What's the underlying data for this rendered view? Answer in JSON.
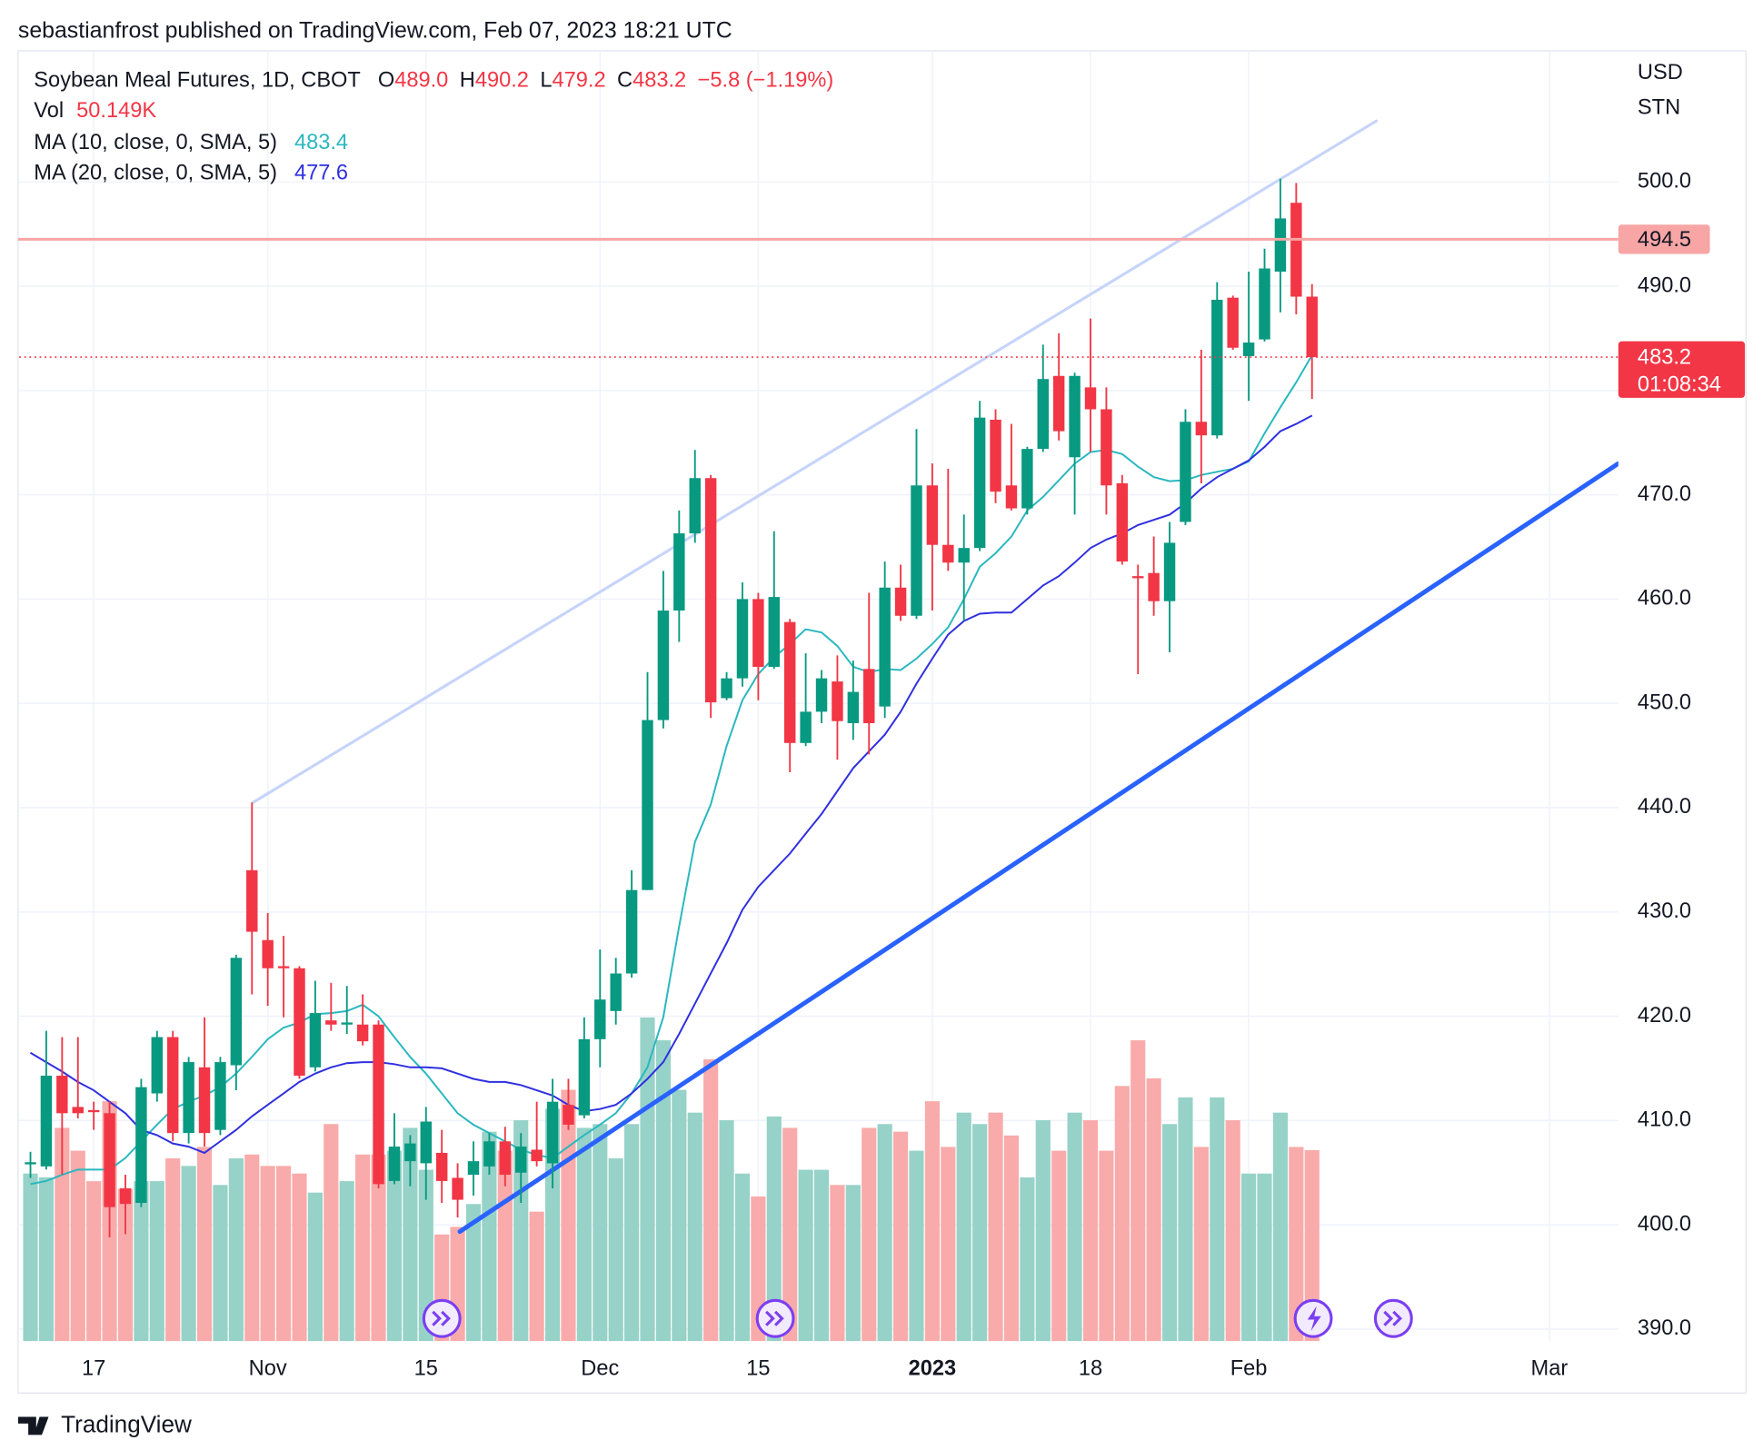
{
  "published": "sebastianfrost published on TradingView.com, Feb 07, 2023 18:21 UTC",
  "brand": "TradingView",
  "chart_data": {
    "type": "candlestick",
    "legend": {
      "symbol": "Soybean Meal Futures, 1D, CBOT",
      "items": [
        {
          "label": "O",
          "value": "489.0"
        },
        {
          "label": "H",
          "value": "490.2"
        },
        {
          "label": "L",
          "value": "479.2"
        },
        {
          "label": "C",
          "value": "483.2"
        }
      ],
      "change": "−5.8 (−1.19%)",
      "volume_name": "Vol",
      "volume_label": "50.149K"
    },
    "currency": "USD",
    "unit": "STN",
    "up_color": "#089981",
    "down_color": "#f23645",
    "volume_up_color": "#96d2c8",
    "volume_down_color": "#f8abaa",
    "xlim": [
      -0.71,
      100.36
    ],
    "ylim": [
      388.85,
      512.57
    ],
    "xticks": [
      {
        "value": 4,
        "label": "17"
      },
      {
        "value": 15,
        "label": "Nov"
      },
      {
        "value": 25,
        "label": "15"
      },
      {
        "value": 36,
        "label": "Dec"
      },
      {
        "value": 46,
        "label": "15"
      },
      {
        "value": 57,
        "label": "2023",
        "bold": true
      },
      {
        "value": 67,
        "label": "18"
      },
      {
        "value": 77,
        "label": "Feb"
      },
      {
        "value": 96,
        "label": "Mar"
      }
    ],
    "yticks": [
      {
        "value": 390,
        "label": "390.0"
      },
      {
        "value": 400,
        "label": "400.0"
      },
      {
        "value": 410,
        "label": "410.0"
      },
      {
        "value": 420,
        "label": "420.0"
      },
      {
        "value": 430,
        "label": "430.0"
      },
      {
        "value": 440,
        "label": "440.0"
      },
      {
        "value": 450,
        "label": "450.0"
      },
      {
        "value": 460,
        "label": "460.0"
      },
      {
        "value": 470,
        "label": "470.0"
      },
      {
        "value": 480,
        "label": "480.0"
      },
      {
        "value": 490,
        "label": "490.0"
      },
      {
        "value": 500,
        "label": "500.0"
      }
    ],
    "grid": true,
    "open": [
      405.8,
      405.6,
      414.3,
      411.3,
      411.0,
      410.7,
      403.5,
      402.1,
      412.6,
      418.0,
      408.8,
      415.1,
      409.1,
      415.3,
      434.0,
      427.3,
      424.8,
      424.6,
      415.1,
      419.6,
      419.2,
      419.2,
      419.2,
      404.2,
      406.1,
      405.9,
      406.9,
      404.5,
      404.8,
      405.6,
      408.0,
      405.0,
      407.2,
      405.9,
      411.5,
      410.5,
      417.8,
      420.5,
      424.1,
      432.1,
      448.4,
      458.9,
      466.3,
      471.6,
      450.5,
      452.4,
      460.0,
      453.5,
      457.8,
      446.2,
      449.2,
      452.1,
      448.1,
      453.3,
      449.7,
      461.1,
      458.4,
      470.9,
      465.2,
      463.5,
      464.9,
      477.2,
      470.9,
      468.7,
      474.4,
      481.4,
      473.6,
      480.3,
      478.2,
      471.1,
      462.2,
      462.5,
      459.8,
      467.4,
      477.0,
      475.7,
      488.9,
      483.3,
      484.9,
      491.4,
      498.0,
      489.0
    ],
    "high": [
      407.0,
      418.6,
      418.0,
      418.0,
      411.8,
      411.8,
      404.8,
      414.0,
      418.6,
      418.6,
      416.1,
      419.9,
      416.1,
      425.9,
      440.5,
      429.9,
      427.7,
      424.8,
      423.4,
      423.2,
      422.9,
      422.1,
      419.6,
      410.7,
      408.6,
      411.3,
      409.1,
      405.9,
      408.0,
      408.8,
      409.4,
      408.8,
      411.8,
      414.0,
      414.0,
      419.9,
      426.4,
      425.6,
      434.0,
      453.0,
      462.7,
      468.5,
      474.3,
      471.9,
      453.0,
      461.6,
      460.6,
      466.5,
      458.1,
      454.8,
      453.2,
      454.6,
      454.1,
      460.6,
      463.6,
      463.3,
      476.3,
      473.0,
      472.5,
      468.1,
      479.0,
      478.2,
      476.8,
      474.6,
      484.4,
      485.5,
      481.7,
      486.9,
      480.3,
      471.9,
      463.3,
      466.0,
      467.4,
      478.2,
      483.9,
      490.4,
      489.1,
      491.4,
      493.6,
      500.3,
      499.9,
      490.2
    ],
    "low": [
      404.5,
      405.3,
      404.8,
      410.2,
      409.1,
      398.8,
      399.1,
      401.7,
      411.8,
      408.0,
      407.8,
      407.5,
      408.6,
      412.9,
      422.1,
      421.0,
      419.9,
      414.0,
      414.7,
      418.6,
      418.3,
      417.2,
      403.5,
      403.9,
      403.7,
      402.4,
      402.1,
      400.7,
      402.8,
      404.8,
      403.7,
      402.1,
      405.6,
      403.5,
      409.1,
      410.2,
      415.1,
      419.2,
      423.7,
      432.1,
      447.6,
      455.9,
      465.4,
      448.6,
      450.3,
      451.6,
      450.3,
      453.3,
      443.4,
      445.9,
      448.1,
      444.6,
      446.5,
      445.1,
      448.6,
      457.9,
      458.1,
      458.9,
      462.7,
      457.9,
      464.6,
      469.2,
      468.5,
      468.1,
      474.1,
      475.2,
      468.1,
      474.1,
      468.1,
      463.3,
      452.8,
      458.4,
      454.9,
      467.1,
      471.1,
      475.4,
      483.9,
      479.0,
      484.7,
      487.5,
      487.3,
      479.2
    ],
    "close": [
      406.0,
      414.3,
      410.7,
      410.7,
      410.8,
      401.7,
      402.0,
      413.2,
      418.0,
      408.8,
      415.6,
      408.8,
      415.6,
      425.6,
      428.1,
      424.6,
      424.6,
      414.3,
      420.3,
      419.2,
      419.4,
      417.6,
      403.9,
      407.5,
      407.8,
      409.9,
      404.2,
      402.4,
      406.1,
      408.0,
      404.8,
      407.5,
      406.1,
      411.8,
      409.6,
      417.8,
      421.6,
      424.1,
      432.1,
      448.4,
      458.9,
      466.3,
      471.6,
      450.1,
      452.4,
      460.0,
      453.5,
      460.2,
      446.2,
      449.2,
      452.4,
      448.3,
      451.1,
      448.1,
      461.1,
      458.4,
      470.9,
      465.2,
      463.5,
      464.9,
      477.4,
      470.3,
      468.7,
      474.4,
      481.1,
      476.1,
      481.4,
      478.2,
      470.9,
      463.6,
      462.0,
      459.8,
      465.4,
      477.0,
      475.7,
      488.7,
      484.1,
      484.6,
      491.7,
      496.5,
      489.0,
      483.2
    ],
    "volume": [
      44,
      43,
      56,
      50,
      42,
      63,
      40,
      42,
      42,
      48,
      46,
      51,
      41,
      48,
      49,
      46,
      46,
      44,
      39,
      57,
      42,
      49,
      49,
      50,
      56,
      45,
      28,
      30,
      36,
      55,
      50,
      58,
      34,
      61,
      66,
      56,
      57,
      48,
      57,
      85,
      79,
      66,
      60,
      74,
      58,
      44,
      38,
      59,
      56,
      45,
      45,
      41,
      41,
      56,
      57,
      55,
      50,
      63,
      51,
      60,
      57,
      60,
      54,
      43,
      58,
      50,
      60,
      58,
      50,
      67,
      79,
      69,
      57,
      64,
      51,
      64,
      58,
      44,
      44,
      60,
      51,
      50.149
    ],
    "series": [
      {
        "name": "MA (10, close, 0, SMA, 5)",
        "color": "#2bb7bf",
        "values": [
          403.9,
          404.2,
          404.8,
          405.3,
          405.3,
          405.3,
          406.4,
          408.0,
          409.6,
          411.1,
          411.8,
          412.4,
          413.2,
          414.5,
          416.1,
          417.8,
          418.9,
          419.4,
          420.2,
          420.3,
          420.5,
          421.1,
          420.0,
          418.0,
          416.1,
          414.5,
          412.6,
          410.7,
          409.6,
          408.8,
          408.0,
          407.2,
          406.7,
          406.4,
          407.5,
          408.6,
          409.6,
          410.7,
          412.6,
          415.1,
          419.9,
          428.6,
          436.7,
          440.3,
          445.9,
          450.3,
          452.8,
          454.4,
          455.7,
          457.1,
          456.8,
          455.5,
          453.5,
          453.0,
          453.3,
          453.2,
          454.3,
          455.7,
          457.3,
          460.0,
          463.1,
          464.4,
          466.0,
          468.5,
          469.8,
          471.4,
          473.0,
          474.1,
          474.3,
          473.9,
          472.7,
          471.7,
          471.3,
          471.4,
          471.9,
          472.2,
          472.5,
          473.2,
          475.9,
          478.4,
          480.8,
          483.4
        ]
      },
      {
        "name": "MA (20, close, 0, SMA, 5)",
        "color": "#2f2fe0",
        "values": [
          416.5,
          415.6,
          414.7,
          413.7,
          412.9,
          411.8,
          410.7,
          409.1,
          408.6,
          407.8,
          407.5,
          406.9,
          408.0,
          409.1,
          410.4,
          411.5,
          412.6,
          413.7,
          414.5,
          415.1,
          415.5,
          415.6,
          415.6,
          415.4,
          415.1,
          415.1,
          415.0,
          414.5,
          414.0,
          413.7,
          413.7,
          413.4,
          412.9,
          412.4,
          411.5,
          410.9,
          411.1,
          411.5,
          412.6,
          414.0,
          415.6,
          418.3,
          421.2,
          424.1,
          427.0,
          430.2,
          432.4,
          434.0,
          435.6,
          437.5,
          439.4,
          441.6,
          443.8,
          445.4,
          447.0,
          449.2,
          451.9,
          454.3,
          456.6,
          457.9,
          458.6,
          458.7,
          458.7,
          460.0,
          461.3,
          462.2,
          463.5,
          464.9,
          465.7,
          466.3,
          467.1,
          467.6,
          468.1,
          469.2,
          470.6,
          471.7,
          472.5,
          473.3,
          474.6,
          476.1,
          476.8,
          477.6
        ]
      }
    ],
    "trendlines": [
      {
        "x": [
          14.07,
          85.07
        ],
        "y": [
          440.5,
          505.85
        ],
        "color": "#c6d4fb"
      },
      {
        "x": [
          27.14,
          100.36
        ],
        "y": [
          399.35,
          473.0
        ],
        "color": "#2962ff"
      }
    ],
    "hlines": [
      {
        "value": 494.5,
        "color": "#f7a5a5"
      }
    ],
    "last_price": {
      "value": 483.2,
      "countdown": "01:08:34",
      "color": "#f23645"
    }
  }
}
